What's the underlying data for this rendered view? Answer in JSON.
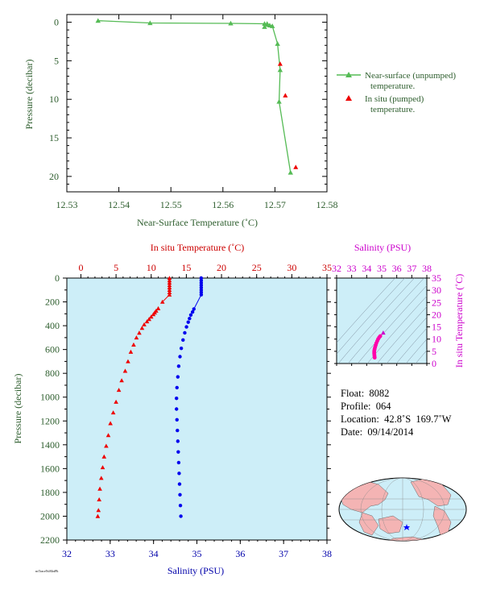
{
  "chart_data": [
    {
      "type": "line",
      "xlabel": "Near-Surface Temperature (˚C)",
      "ylabel": "Pressure (decibar)",
      "xlim": [
        12.53,
        12.58
      ],
      "ylim": [
        22,
        -1
      ],
      "xticks": [
        "12.53",
        "12.54",
        "12.55",
        "12.56",
        "12.57",
        "12.58"
      ],
      "yticks": [
        "0",
        "5",
        "10",
        "15",
        "20"
      ],
      "legend_position": "right",
      "series": [
        {
          "name": "Near-surface (unpumped) temperature.",
          "color": "#55bb55",
          "marker": "triangle",
          "points": [
            [
              12.536,
              -0.2
            ],
            [
              12.546,
              0.1
            ],
            [
              12.5615,
              0.15
            ],
            [
              12.568,
              0.2
            ],
            [
              12.568,
              0.6
            ],
            [
              12.569,
              0.4
            ],
            [
              12.5685,
              0.2
            ],
            [
              12.5695,
              0.5
            ],
            [
              12.5705,
              2.8
            ],
            [
              12.571,
              6.2
            ],
            [
              12.5708,
              10.3
            ],
            [
              12.573,
              19.5
            ]
          ]
        },
        {
          "name": "In situ (pumped) temperature.",
          "color": "#ee0000",
          "marker": "triangle",
          "points": [
            [
              12.571,
              5.4
            ],
            [
              12.572,
              9.5
            ],
            [
              12.574,
              18.8
            ]
          ]
        }
      ]
    },
    {
      "type": "scatter",
      "xlabel_top": "In situ Temperature (˚C)",
      "xlabel_bottom": "Salinity (PSU)",
      "ylabel": "Pressure (decibar)",
      "temperature_xlim": [
        -2,
        35
      ],
      "salinity_xlim": [
        32,
        38
      ],
      "ylim": [
        2200,
        0
      ],
      "temperature_ticks": [
        "0",
        "5",
        "10",
        "15",
        "20",
        "25",
        "30",
        "35"
      ],
      "salinity_ticks": [
        "32",
        "33",
        "34",
        "35",
        "36",
        "37",
        "38"
      ],
      "yticks": [
        "0",
        "200",
        "400",
        "600",
        "800",
        "1000",
        "1200",
        "1400",
        "1600",
        "1800",
        "2000",
        "2200"
      ],
      "grid": false,
      "background": "#cdeef8",
      "series": [
        {
          "name": "In situ Temperature",
          "color": "#ee0000",
          "marker": "triangle",
          "points": [
            [
              12.6,
              0
            ],
            [
              12.6,
              20
            ],
            [
              12.6,
              40
            ],
            [
              12.6,
              60
            ],
            [
              12.6,
              80
            ],
            [
              12.6,
              100
            ],
            [
              12.6,
              120
            ],
            [
              12.6,
              140
            ],
            [
              11.6,
              200
            ],
            [
              11.0,
              255
            ],
            [
              10.7,
              275
            ],
            [
              10.5,
              290
            ],
            [
              10.3,
              305
            ],
            [
              10.0,
              325
            ],
            [
              9.7,
              345
            ],
            [
              9.4,
              365
            ],
            [
              9.0,
              390
            ],
            [
              8.7,
              420
            ],
            [
              8.3,
              460
            ],
            [
              7.9,
              500
            ],
            [
              7.5,
              560
            ],
            [
              7.1,
              620
            ],
            [
              6.7,
              700
            ],
            [
              6.3,
              780
            ],
            [
              5.8,
              860
            ],
            [
              5.4,
              940
            ],
            [
              5.0,
              1040
            ],
            [
              4.6,
              1130
            ],
            [
              4.2,
              1220
            ],
            [
              3.9,
              1320
            ],
            [
              3.6,
              1410
            ],
            [
              3.3,
              1500
            ],
            [
              3.1,
              1590
            ],
            [
              2.9,
              1680
            ],
            [
              2.7,
              1770
            ],
            [
              2.6,
              1860
            ],
            [
              2.5,
              1950
            ],
            [
              2.4,
              2000
            ]
          ]
        },
        {
          "name": "Salinity",
          "color": "#0000ee",
          "marker": "circle",
          "points": [
            [
              35.1,
              0
            ],
            [
              35.1,
              20
            ],
            [
              35.1,
              40
            ],
            [
              35.1,
              60
            ],
            [
              35.1,
              80
            ],
            [
              35.1,
              100
            ],
            [
              35.1,
              120
            ],
            [
              35.1,
              140
            ],
            [
              34.93,
              260
            ],
            [
              34.9,
              285
            ],
            [
              34.86,
              310
            ],
            [
              34.83,
              340
            ],
            [
              34.8,
              370
            ],
            [
              34.76,
              410
            ],
            [
              34.72,
              460
            ],
            [
              34.68,
              520
            ],
            [
              34.64,
              590
            ],
            [
              34.61,
              660
            ],
            [
              34.58,
              740
            ],
            [
              34.56,
              830
            ],
            [
              34.54,
              920
            ],
            [
              34.53,
              1010
            ],
            [
              34.53,
              1100
            ],
            [
              34.54,
              1190
            ],
            [
              34.55,
              1280
            ],
            [
              34.56,
              1370
            ],
            [
              34.57,
              1460
            ],
            [
              34.58,
              1550
            ],
            [
              34.59,
              1640
            ],
            [
              34.6,
              1730
            ],
            [
              34.61,
              1820
            ],
            [
              34.62,
              1910
            ],
            [
              34.63,
              2000
            ]
          ]
        }
      ]
    },
    {
      "type": "scatter",
      "title": "Salinity (PSU)",
      "ylabel": "In situ Temperature (˚C)",
      "xlim": [
        32,
        38
      ],
      "ylim": [
        0,
        35
      ],
      "xticks": [
        "32",
        "33",
        "34",
        "35",
        "36",
        "37",
        "38"
      ],
      "yticks": [
        "0",
        "5",
        "10",
        "15",
        "20",
        "25",
        "30",
        "35"
      ],
      "background": "#cdeef8",
      "series": [
        {
          "name": "T-S",
          "color": "#ff00aa",
          "marker": "circle",
          "points": [
            [
              34.53,
              2.4
            ],
            [
              34.52,
              3.0
            ],
            [
              34.51,
              3.6
            ],
            [
              34.5,
              4.2
            ],
            [
              34.5,
              4.8
            ],
            [
              34.51,
              5.4
            ],
            [
              34.53,
              6.0
            ],
            [
              34.56,
              6.7
            ],
            [
              34.6,
              7.5
            ],
            [
              34.64,
              8.3
            ],
            [
              34.7,
              9.2
            ],
            [
              34.76,
              10.0
            ],
            [
              34.83,
              10.7
            ],
            [
              34.9,
              11.2
            ],
            [
              35.1,
              12.6
            ]
          ]
        }
      ]
    }
  ],
  "info": {
    "float": "Float:  8082",
    "profile": "Profile:  064",
    "location": "Location:  42.8˚S  169.7˚W",
    "date": "Date:  09/14/2014"
  },
  "tiny_label": "ncTraceNcMotPlt"
}
